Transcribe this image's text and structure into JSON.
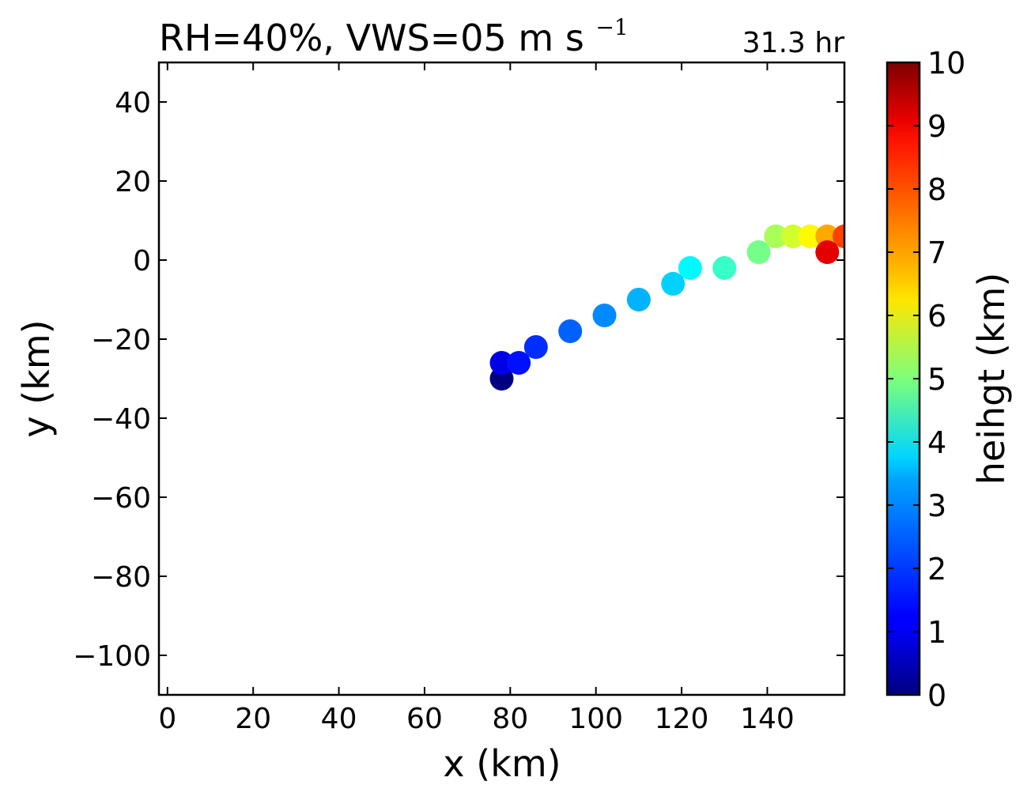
{
  "chart_data": {
    "type": "scatter",
    "title": {
      "main": "RH=40%, VWS=05 m s",
      "sup": "−1"
    },
    "time_label": "31.3 hr",
    "time_label_color": "#0000ff",
    "xlabel": "x (km)",
    "ylabel": "y (km)",
    "xlim": [
      -2,
      158
    ],
    "ylim": [
      -110,
      50
    ],
    "xticks": [
      {
        "value": 0,
        "label": "0"
      },
      {
        "value": 20,
        "label": "20"
      },
      {
        "value": 40,
        "label": "40"
      },
      {
        "value": 60,
        "label": "60"
      },
      {
        "value": 80,
        "label": "80"
      },
      {
        "value": 100,
        "label": "100"
      },
      {
        "value": 120,
        "label": "120"
      },
      {
        "value": 140,
        "label": "140"
      }
    ],
    "yticks": [
      {
        "value": 40,
        "label": "40"
      },
      {
        "value": 20,
        "label": "20"
      },
      {
        "value": 0,
        "label": "0"
      },
      {
        "value": -20,
        "label": "−20"
      },
      {
        "value": -40,
        "label": "−40"
      },
      {
        "value": -60,
        "label": "−60"
      },
      {
        "value": -80,
        "label": "−80"
      },
      {
        "value": -100,
        "label": "−100"
      }
    ],
    "colorbar": {
      "label": "heihgt (km)",
      "range": [
        0,
        10
      ],
      "colormap": "jet",
      "ticks": [
        "0",
        "1",
        "2",
        "3",
        "4",
        "5",
        "6",
        "7",
        "8",
        "9",
        "10"
      ]
    },
    "grid": false,
    "points": [
      {
        "x": 78,
        "y": -30,
        "height": 0.0
      },
      {
        "x": 78,
        "y": -26,
        "height": 1.0
      },
      {
        "x": 82,
        "y": -26,
        "height": 1.4
      },
      {
        "x": 86,
        "y": -22,
        "height": 1.7
      },
      {
        "x": 94,
        "y": -18,
        "height": 2.2
      },
      {
        "x": 102,
        "y": -14,
        "height": 2.6
      },
      {
        "x": 110,
        "y": -10,
        "height": 3.0
      },
      {
        "x": 118,
        "y": -6,
        "height": 3.3
      },
      {
        "x": 122,
        "y": -2,
        "height": 3.7
      },
      {
        "x": 130,
        "y": -2,
        "height": 4.3
      },
      {
        "x": 138,
        "y": 2,
        "height": 4.9
      },
      {
        "x": 142,
        "y": 6,
        "height": 5.4
      },
      {
        "x": 146,
        "y": 6,
        "height": 5.8
      },
      {
        "x": 150,
        "y": 6,
        "height": 6.3
      },
      {
        "x": 154,
        "y": 6,
        "height": 7.1
      },
      {
        "x": 158,
        "y": 6,
        "height": 8.1
      },
      {
        "x": 154,
        "y": 2,
        "height": 9.0
      }
    ]
  }
}
